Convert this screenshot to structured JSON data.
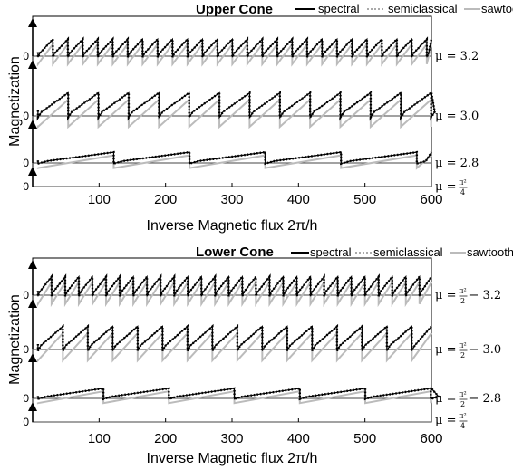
{
  "chart_data": [
    {
      "type": "line",
      "title": "Upper Cone",
      "xlabel": "Inverse Magnetic flux 2π/h",
      "ylabel": "Magnetization",
      "xlim": [
        0,
        600
      ],
      "x_ticks": [
        "100",
        "200",
        "300",
        "400",
        "500",
        "600"
      ],
      "legend": [
        "spectral",
        "semiclassical",
        "sawtooth"
      ],
      "legend_position": "top",
      "zero_label": "0",
      "traces": [
        {
          "mu_label": "μ = 3.2",
          "mu_pre": "μ = ",
          "mu_value": "3.2",
          "period": 22.5
        },
        {
          "mu_label": "μ = 3.0",
          "mu_pre": "μ = ",
          "mu_value": "3.0",
          "period": 45.5
        },
        {
          "mu_label": "μ = 2.8",
          "mu_pre": "μ = ",
          "mu_value": "2.8",
          "period": 114
        },
        {
          "mu_label": "μ = π²/4",
          "mu_pre": "μ = ",
          "mu_num": "π²",
          "mu_den": "4",
          "mu_post": ""
        }
      ]
    },
    {
      "type": "line",
      "title": "Lower Cone",
      "xlabel": "Inverse Magnetic flux 2π/h",
      "ylabel": "Magnetization",
      "xlim": [
        0,
        600
      ],
      "x_ticks": [
        "100",
        "200",
        "300",
        "400",
        "500",
        "600"
      ],
      "legend": [
        "spectral",
        "semiclassical",
        "sawtooth"
      ],
      "legend_position": "top",
      "zero_label": "0",
      "traces": [
        {
          "mu_label": "μ = π²/2 − 3.2",
          "mu_pre": "μ = ",
          "mu_num": "π²",
          "mu_den": "2",
          "mu_post": " − 3.2",
          "period": 20.5
        },
        {
          "mu_label": "μ = π²/2 − 3.0",
          "mu_pre": "μ = ",
          "mu_num": "π²",
          "mu_den": "2",
          "mu_post": " − 3.0",
          "period": 37.5
        },
        {
          "mu_label": "μ = π²/2 − 2.8",
          "mu_pre": "μ = ",
          "mu_num": "π²",
          "mu_den": "2",
          "mu_post": " − 2.8",
          "period": 98.5
        },
        {
          "mu_label": "μ = π²/4",
          "mu_pre": "μ = ",
          "mu_num": "π²",
          "mu_den": "4",
          "mu_post": ""
        }
      ]
    }
  ]
}
